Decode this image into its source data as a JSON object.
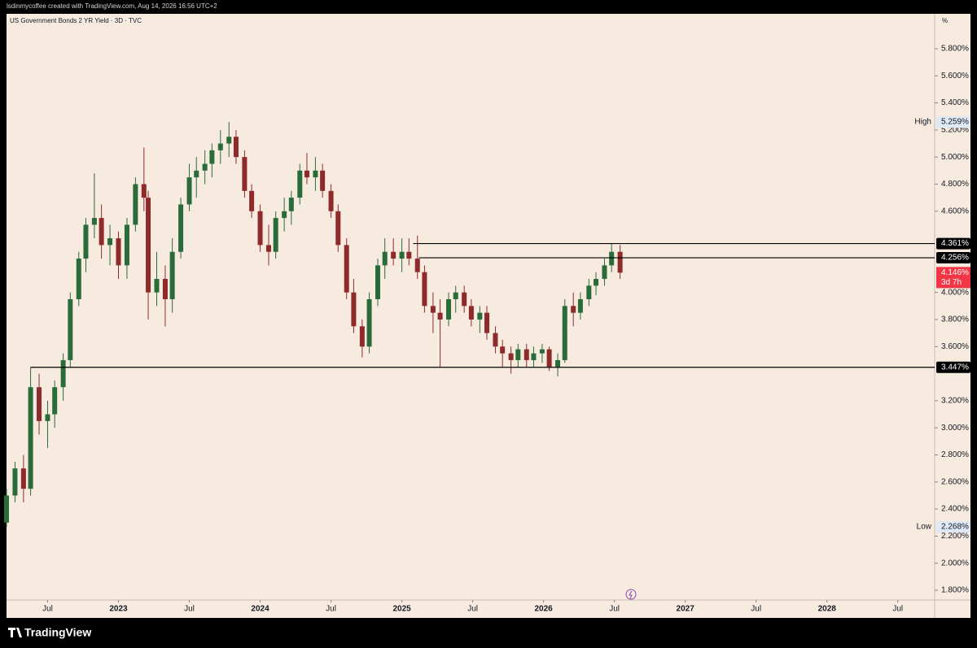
{
  "header": {
    "watermark": "lsdinmycoffee created with TradingView.com, Aug 14, 2026 16:56 UTC+2"
  },
  "footer": {
    "brand": "TradingView"
  },
  "chart_data": {
    "type": "candlestick",
    "title": "US Government Bonds 2 YR Yield · 3D · TVC",
    "y_unit": "%",
    "x": [
      2022.21,
      2022.27,
      2022.33,
      2022.38,
      2022.44,
      2022.5,
      2022.55,
      2022.61,
      2022.66,
      2022.72,
      2022.77,
      2022.83,
      2022.88,
      2022.94,
      2023.0,
      2023.06,
      2023.12,
      2023.18,
      2023.21,
      2023.27,
      2023.33,
      2023.38,
      2023.44,
      2023.5,
      2023.55,
      2023.61,
      2023.66,
      2023.72,
      2023.78,
      2023.83,
      2023.89,
      2023.94,
      2024.0,
      2024.06,
      2024.11,
      2024.17,
      2024.22,
      2024.28,
      2024.33,
      2024.39,
      2024.44,
      2024.5,
      2024.55,
      2024.61,
      2024.66,
      2024.72,
      2024.77,
      2024.83,
      2024.88,
      2024.94,
      2025.0,
      2025.05,
      2025.11,
      2025.16,
      2025.22,
      2025.27,
      2025.33,
      2025.38,
      2025.44,
      2025.49,
      2025.55,
      2025.6,
      2025.66,
      2025.71,
      2025.77,
      2025.82,
      2025.88,
      2025.93,
      2025.99,
      2026.04,
      2026.1,
      2026.15,
      2026.21,
      2026.26,
      2026.32,
      2026.37,
      2026.43,
      2026.48,
      2026.54
    ],
    "open": [
      2.3,
      2.5,
      2.7,
      2.55,
      3.3,
      3.05,
      3.1,
      3.3,
      3.5,
      3.95,
      4.25,
      4.5,
      4.55,
      4.35,
      4.4,
      4.2,
      4.5,
      4.8,
      4.7,
      4.0,
      4.1,
      3.95,
      4.3,
      4.65,
      4.85,
      4.9,
      4.95,
      5.05,
      5.1,
      5.15,
      5.0,
      4.75,
      4.6,
      4.35,
      4.3,
      4.55,
      4.6,
      4.7,
      4.9,
      4.85,
      4.9,
      4.75,
      4.6,
      4.35,
      4.0,
      3.75,
      3.6,
      3.95,
      4.2,
      4.3,
      4.25,
      4.3,
      4.25,
      4.15,
      3.9,
      3.85,
      3.8,
      3.95,
      4.0,
      3.9,
      3.8,
      3.85,
      3.7,
      3.6,
      3.55,
      3.5,
      3.58,
      3.5,
      3.55,
      3.58,
      3.45,
      3.5,
      3.9,
      3.85,
      3.95,
      4.05,
      4.1,
      4.2,
      4.3
    ],
    "high": [
      2.55,
      2.75,
      2.8,
      3.447,
      3.4,
      3.2,
      3.35,
      3.55,
      4.0,
      4.3,
      4.55,
      4.88,
      4.65,
      4.5,
      4.45,
      4.55,
      4.85,
      5.07,
      4.75,
      4.3,
      4.2,
      4.4,
      4.7,
      4.95,
      5.0,
      5.05,
      5.1,
      5.2,
      5.259,
      5.2,
      5.05,
      4.8,
      4.65,
      4.5,
      4.6,
      4.7,
      4.75,
      4.95,
      5.03,
      5.0,
      4.95,
      4.8,
      4.65,
      4.4,
      4.1,
      3.8,
      4.0,
      4.25,
      4.4,
      4.4,
      4.4,
      4.4,
      4.42,
      4.2,
      4.0,
      3.95,
      4.0,
      4.05,
      4.05,
      3.95,
      3.9,
      3.9,
      3.75,
      3.65,
      3.6,
      3.62,
      3.62,
      3.6,
      3.62,
      3.6,
      3.55,
      3.95,
      4.0,
      4.0,
      4.1,
      4.15,
      4.25,
      4.361,
      4.35
    ],
    "low": [
      2.268,
      2.45,
      2.45,
      2.5,
      2.95,
      2.85,
      3.0,
      3.2,
      3.45,
      3.9,
      4.15,
      4.4,
      4.25,
      4.2,
      4.1,
      4.1,
      4.45,
      4.6,
      3.8,
      3.9,
      3.75,
      3.85,
      4.25,
      4.6,
      4.7,
      4.8,
      4.85,
      4.95,
      5.0,
      4.95,
      4.7,
      4.55,
      4.3,
      4.2,
      4.25,
      4.45,
      4.5,
      4.65,
      4.8,
      4.75,
      4.7,
      4.55,
      4.3,
      3.95,
      3.7,
      3.52,
      3.55,
      3.9,
      4.1,
      4.2,
      4.15,
      4.2,
      4.1,
      3.85,
      3.7,
      3.45,
      3.75,
      3.85,
      3.85,
      3.75,
      3.7,
      3.65,
      3.55,
      3.45,
      3.4,
      3.45,
      3.45,
      3.45,
      3.48,
      3.42,
      3.38,
      3.48,
      3.75,
      3.8,
      3.9,
      3.98,
      4.05,
      4.15,
      4.1
    ],
    "close": [
      2.5,
      2.7,
      2.55,
      3.3,
      3.05,
      3.1,
      3.3,
      3.5,
      3.95,
      4.25,
      4.5,
      4.55,
      4.35,
      4.4,
      4.2,
      4.5,
      4.8,
      4.7,
      4.0,
      4.1,
      3.95,
      4.3,
      4.65,
      4.85,
      4.9,
      4.95,
      5.05,
      5.1,
      5.15,
      5.0,
      4.75,
      4.6,
      4.35,
      4.3,
      4.55,
      4.6,
      4.7,
      4.9,
      4.85,
      4.9,
      4.75,
      4.6,
      4.35,
      4.0,
      3.75,
      3.6,
      3.95,
      4.2,
      4.3,
      4.25,
      4.3,
      4.25,
      4.15,
      3.9,
      3.85,
      3.8,
      3.95,
      4.0,
      3.9,
      3.8,
      3.85,
      3.7,
      3.6,
      3.55,
      3.5,
      3.58,
      3.5,
      3.55,
      3.58,
      3.45,
      3.5,
      3.9,
      3.85,
      3.95,
      4.05,
      4.1,
      4.2,
      4.3,
      4.146
    ],
    "colors": {
      "up": "#2a6b3a",
      "down": "#8e2a2a",
      "background": "#f7ebe0"
    },
    "xlim": [
      2022.21,
      2028.76
    ],
    "xticks": [
      {
        "value": 2022.5,
        "label": "Jul"
      },
      2023,
      {
        "value": 2023.5,
        "label": "Jul"
      },
      2024,
      {
        "value": 2024.5,
        "label": "Jul"
      },
      2025,
      {
        "value": 2025.5,
        "label": "Jul"
      },
      2026,
      {
        "value": 2026.5,
        "label": "Jul"
      },
      2027,
      {
        "value": 2027.5,
        "label": "Jul"
      },
      2028,
      {
        "value": 2028.5,
        "label": "Jul"
      }
    ],
    "ylim": [
      1.728,
      6.058
    ],
    "yticks": [
      {
        "value": 5.8,
        "label": "5.800%"
      },
      {
        "value": 5.6,
        "label": "5.600%"
      },
      {
        "value": 5.4,
        "label": "5.400%"
      },
      {
        "value": 5.2,
        "label": "5.200%"
      },
      {
        "value": 5.0,
        "label": "5.000%"
      },
      {
        "value": 4.8,
        "label": "4.800%"
      },
      {
        "value": 4.6,
        "label": "4.600%"
      },
      {
        "value": 4.0,
        "label": "4.000%"
      },
      {
        "value": 3.8,
        "label": "3.800%"
      },
      {
        "value": 3.6,
        "label": "3.600%"
      },
      {
        "value": 3.2,
        "label": "3.200%"
      },
      {
        "value": 3.0,
        "label": "3.000%"
      },
      {
        "value": 2.8,
        "label": "2.800%"
      },
      {
        "value": 2.6,
        "label": "2.600%"
      },
      {
        "value": 2.4,
        "label": "2.400%"
      },
      {
        "value": 2.2,
        "label": "2.200%"
      },
      {
        "value": 2.0,
        "label": "2.000%"
      },
      {
        "value": 1.8,
        "label": "1.800%"
      }
    ],
    "levels": [
      {
        "value": 4.361,
        "label": "4.361%",
        "from": 2025.08
      },
      {
        "value": 4.256,
        "label": "4.256%",
        "from": 2025.12
      },
      {
        "value": 3.447,
        "label": "3.447%",
        "from": 2022.38
      }
    ],
    "high_marker": {
      "name": "High",
      "value": 5.259,
      "label": "5.259%"
    },
    "low_marker": {
      "name": "Low",
      "value": 2.268,
      "label": "2.268%"
    },
    "last": {
      "value": 4.146,
      "label": "4.146%",
      "countdown": "3d 7h"
    }
  }
}
